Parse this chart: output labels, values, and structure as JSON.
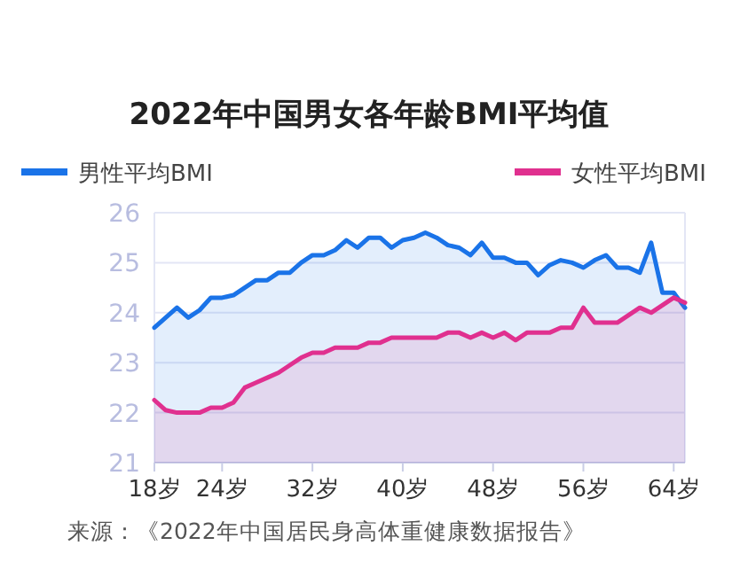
{
  "chart_data": {
    "type": "area",
    "title": "2022年中国男女各年龄BMI平均值",
    "categories": [
      "18岁",
      null,
      null,
      null,
      null,
      null,
      "24岁",
      null,
      null,
      null,
      null,
      null,
      null,
      null,
      "32岁",
      null,
      null,
      null,
      null,
      null,
      null,
      null,
      "40岁",
      null,
      null,
      null,
      null,
      null,
      null,
      null,
      "48岁",
      null,
      null,
      null,
      null,
      null,
      null,
      null,
      "56岁",
      null,
      null,
      null,
      null,
      null,
      null,
      null,
      "64岁",
      null
    ],
    "series": [
      {
        "name": "男性平均BMI",
        "color": "#1a73e8",
        "values": [
          23.7,
          23.9,
          24.1,
          23.9,
          24.05,
          24.3,
          24.3,
          24.35,
          24.5,
          24.65,
          24.65,
          24.8,
          24.8,
          25.0,
          25.15,
          25.15,
          25.25,
          25.45,
          25.3,
          25.5,
          25.5,
          25.3,
          25.45,
          25.5,
          25.6,
          25.5,
          25.35,
          25.3,
          25.15,
          25.4,
          25.1,
          25.1,
          25.0,
          25.0,
          24.75,
          24.95,
          25.05,
          25.0,
          24.9,
          25.05,
          25.15,
          24.9,
          24.9,
          24.8,
          25.4,
          24.4,
          24.4,
          24.1
        ]
      },
      {
        "name": "女性平均BMI",
        "color": "#e0308f",
        "values": [
          22.25,
          22.05,
          22.0,
          22.0,
          22.0,
          22.1,
          22.1,
          22.2,
          22.5,
          22.6,
          22.7,
          22.8,
          22.95,
          23.1,
          23.2,
          23.2,
          23.3,
          23.3,
          23.3,
          23.4,
          23.4,
          23.5,
          23.5,
          23.5,
          23.5,
          23.5,
          23.6,
          23.6,
          23.5,
          23.6,
          23.5,
          23.6,
          23.45,
          23.6,
          23.6,
          23.6,
          23.7,
          23.7,
          24.1,
          23.8,
          23.8,
          23.8,
          23.95,
          24.1,
          24.0,
          24.15,
          24.3,
          24.2
        ]
      }
    ],
    "ylim": [
      21,
      26
    ],
    "yticks": [
      21,
      22,
      23,
      24,
      25,
      26
    ],
    "grid": "y",
    "legend": "top",
    "annotations": [
      "来源：《2022年中国居民身高体重健康数据报告》"
    ]
  }
}
